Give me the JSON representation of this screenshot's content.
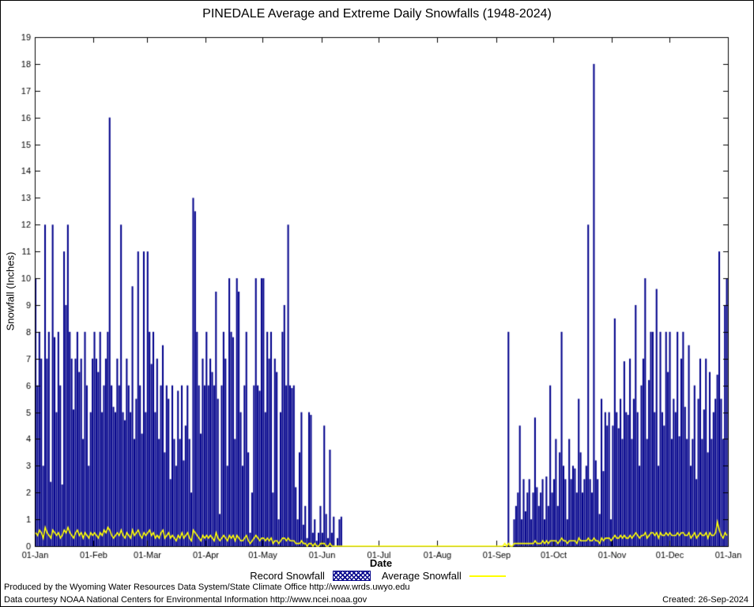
{
  "title": "PINEDALE Average and Extreme Daily Snowfalls (1948-2024)",
  "legend": {
    "record_label": "Record Snowfall",
    "average_label": "Average Snowfall"
  },
  "footer": {
    "line1": "Produced by the Wyoming Water Resources Data System/State Climate Office http://www.wrds.uwyo.edu",
    "line2": "Data courtesy NOAA National Centers for Environmental Information http://www.ncei.noaa.gov",
    "created": "Created: 26-Sep-2024"
  },
  "chart_data": {
    "type": "bar",
    "title": "PINEDALE Average and Extreme Daily Snowfalls (1948-2024)",
    "xlabel": "Date",
    "ylabel": "Snowfall (Inches)",
    "ylim": [
      0,
      19
    ],
    "y_tick_step": 1,
    "grid": false,
    "legend_position": "bottom",
    "x_tick_labels": [
      "01-Jan",
      "01-Feb",
      "01-Mar",
      "01-Apr",
      "01-May",
      "01-Jun",
      "01-Jul",
      "01-Aug",
      "01-Sep",
      "01-Oct",
      "01-Nov",
      "01-Dec",
      "01-Jan"
    ],
    "month_day_offsets": [
      0,
      31,
      59,
      90,
      120,
      151,
      181,
      212,
      243,
      273,
      304,
      334,
      365
    ],
    "colors": {
      "record": "#00008b",
      "average": "#ffff00"
    },
    "series": [
      {
        "name": "Record Snowfall",
        "type": "bar",
        "values": [
          10,
          6,
          8,
          7,
          3,
          12,
          7,
          8,
          2.4,
          12,
          7.8,
          5,
          8,
          6,
          2.3,
          11,
          9,
          12,
          8,
          7,
          5.1,
          7,
          8,
          6.5,
          7,
          4,
          8,
          6,
          3,
          5,
          7,
          8,
          7,
          6.5,
          8,
          5,
          6,
          7,
          8,
          16,
          6,
          5.2,
          5,
          7,
          6,
          12,
          5,
          4.7,
          7,
          6,
          5,
          9.7,
          4,
          5.5,
          11,
          6,
          4.2,
          11,
          5,
          11,
          8,
          6.8,
          8,
          5,
          7,
          4,
          6,
          7.5,
          3.5,
          6,
          5.5,
          2.5,
          6,
          4,
          3,
          5.8,
          4,
          6,
          3.2,
          4.5,
          6,
          4,
          2,
          13,
          12.5,
          8,
          6,
          4.2,
          7,
          6,
          8,
          6,
          7,
          6.5,
          6,
          9.5,
          5.5,
          1.2,
          6,
          8,
          7,
          3,
          10,
          8,
          7.8,
          4,
          10,
          9.5,
          5,
          3,
          6,
          8,
          3.5,
          0.5,
          2,
          6,
          10,
          6,
          5.8,
          10,
          10,
          5,
          8,
          7,
          8,
          2,
          7,
          6.5,
          1,
          5,
          8,
          9,
          6,
          12,
          6,
          5.9,
          6,
          2.2,
          1,
          3.5,
          5,
          0.8,
          1.5,
          0.3,
          5,
          4.9,
          0.5,
          1,
          0.2,
          0.5,
          1.5,
          0.5,
          4.5,
          1.2,
          0.3,
          3.6,
          0.5,
          1.1,
          0,
          0.3,
          1,
          1.1,
          0,
          0,
          0,
          0,
          0,
          0,
          0,
          0,
          0,
          0,
          0,
          0,
          0,
          0,
          0,
          0,
          0,
          0,
          0,
          0,
          0,
          0,
          0,
          0,
          0,
          0,
          0,
          0,
          0,
          0,
          0,
          0,
          0,
          0,
          0,
          0,
          0,
          0,
          0,
          0,
          0,
          0,
          0,
          0,
          0,
          0,
          0,
          0,
          0,
          0,
          0,
          0,
          0,
          0,
          0,
          0,
          0,
          0,
          0,
          0,
          0,
          0,
          0,
          0,
          0,
          0,
          0,
          0,
          0,
          0,
          0,
          0,
          0,
          0,
          0,
          0,
          0,
          0,
          0,
          0,
          0,
          0,
          0,
          0,
          0,
          0,
          0,
          8,
          0,
          0,
          1,
          1.5,
          2,
          4.5,
          1,
          2.5,
          1.3,
          2,
          2.5,
          1,
          2,
          4.8,
          2.2,
          1.5,
          2,
          2.5,
          1,
          2.6,
          1.5,
          6,
          2,
          2.5,
          4,
          1.5,
          3.5,
          8,
          3,
          2.5,
          1,
          4,
          2.5,
          3,
          2.9,
          2,
          5.5,
          3.5,
          2,
          2.5,
          3,
          12,
          2.5,
          2,
          18,
          3.2,
          2.5,
          1.2,
          5.5,
          2.8,
          5,
          4.5,
          5,
          1,
          4.5,
          8.5,
          5,
          4.4,
          5.5,
          4,
          6.9,
          5,
          4.9,
          7,
          4,
          5.5,
          9,
          5,
          3,
          6,
          7,
          10,
          4,
          6.2,
          8,
          8,
          5,
          9.6,
          3,
          8,
          5,
          4.5,
          8,
          6.5,
          8,
          4,
          5.5,
          5,
          8,
          4.1,
          7,
          8,
          5.2,
          4,
          7.5,
          3,
          4,
          6,
          2.5,
          5.5,
          7,
          4,
          5.1,
          7,
          3.5,
          6.5,
          4,
          5,
          5.5,
          6.4,
          11,
          5.5,
          4,
          9,
          10
        ]
      },
      {
        "name": "Average Snowfall",
        "type": "line",
        "values": [
          0.5,
          0.4,
          0.6,
          0.5,
          0.3,
          0.7,
          0.5,
          0.4,
          0.3,
          0.6,
          0.5,
          0.4,
          0.5,
          0.3,
          0.4,
          0.6,
          0.5,
          0.7,
          0.5,
          0.4,
          0.3,
          0.5,
          0.6,
          0.4,
          0.5,
          0.3,
          0.5,
          0.4,
          0.3,
          0.5,
          0.4,
          0.5,
          0.4,
          0.3,
          0.5,
          0.4,
          0.6,
          0.5,
          0.7,
          0.6,
          0.4,
          0.3,
          0.4,
          0.5,
          0.4,
          0.6,
          0.4,
          0.3,
          0.5,
          0.4,
          0.3,
          0.6,
          0.4,
          0.5,
          0.6,
          0.4,
          0.3,
          0.5,
          0.4,
          0.5,
          0.6,
          0.4,
          0.5,
          0.3,
          0.4,
          0.3,
          0.5,
          0.6,
          0.3,
          0.4,
          0.5,
          0.3,
          0.4,
          0.3,
          0.2,
          0.4,
          0.3,
          0.5,
          0.3,
          0.4,
          0.5,
          0.3,
          0.2,
          0.6,
          0.5,
          0.4,
          0.3,
          0.2,
          0.4,
          0.3,
          0.4,
          0.3,
          0.4,
          0.3,
          0.2,
          0.5,
          0.3,
          0.2,
          0.3,
          0.4,
          0.3,
          0.2,
          0.4,
          0.3,
          0.4,
          0.2,
          0.4,
          0.3,
          0.2,
          0.2,
          0.3,
          0.4,
          0.2,
          0.1,
          0.2,
          0.3,
          0.4,
          0.3,
          0.2,
          0.3,
          0.3,
          0.2,
          0.3,
          0.2,
          0.3,
          0.1,
          0.2,
          0.2,
          0.1,
          0.2,
          0.3,
          0.3,
          0.2,
          0.3,
          0.2,
          0.2,
          0.2,
          0.1,
          0.1,
          0.1,
          0.2,
          0.1,
          0.1,
          0,
          0.1,
          0.1,
          0,
          0.1,
          0,
          0,
          0.1,
          0.1,
          0.1,
          0,
          0,
          0.1,
          0,
          0,
          0,
          0,
          0,
          0,
          0,
          0,
          0,
          0,
          0,
          0,
          0,
          0,
          0,
          0,
          0,
          0,
          0,
          0,
          0,
          0,
          0,
          0,
          0,
          0,
          0,
          0,
          0,
          0,
          0,
          0,
          0,
          0,
          0,
          0,
          0,
          0,
          0,
          0,
          0,
          0,
          0,
          0,
          0,
          0,
          0,
          0,
          0,
          0,
          0,
          0,
          0,
          0,
          0,
          0,
          0,
          0,
          0,
          0,
          0,
          0,
          0,
          0,
          0,
          0,
          0,
          0,
          0,
          0,
          0,
          0,
          0,
          0,
          0,
          0,
          0,
          0,
          0,
          0,
          0,
          0,
          0,
          0,
          0,
          0,
          0,
          0,
          0,
          0,
          0,
          0.1,
          0,
          0.1,
          0,
          0,
          0.1,
          0.1,
          0.1,
          0.1,
          0.1,
          0.1,
          0.1,
          0.1,
          0.1,
          0.1,
          0.1,
          0.2,
          0.1,
          0.1,
          0.1,
          0.2,
          0.1,
          0.2,
          0.1,
          0.2,
          0.2,
          0.2,
          0.2,
          0.1,
          0.2,
          0.3,
          0.2,
          0.2,
          0.1,
          0.2,
          0.2,
          0.2,
          0.2,
          0.1,
          0.3,
          0.2,
          0.2,
          0.2,
          0.2,
          0.3,
          0.2,
          0.2,
          0.3,
          0.2,
          0.2,
          0.1,
          0.3,
          0.2,
          0.3,
          0.3,
          0.3,
          0.2,
          0.3,
          0.4,
          0.3,
          0.3,
          0.4,
          0.3,
          0.4,
          0.3,
          0.3,
          0.4,
          0.3,
          0.4,
          0.5,
          0.4,
          0.3,
          0.4,
          0.4,
          0.5,
          0.3,
          0.4,
          0.5,
          0.5,
          0.4,
          0.5,
          0.3,
          0.5,
          0.4,
          0.4,
          0.5,
          0.4,
          0.5,
          0.4,
          0.4,
          0.4,
          0.5,
          0.4,
          0.5,
          0.5,
          0.4,
          0.4,
          0.5,
          0.3,
          0.4,
          0.5,
          0.3,
          0.4,
          0.5,
          0.4,
          0.4,
          0.5,
          0.3,
          0.5,
          0.4,
          0.4,
          0.5,
          0.9,
          0.6,
          0.4,
          0.3,
          0.5,
          0.4
        ]
      }
    ]
  }
}
